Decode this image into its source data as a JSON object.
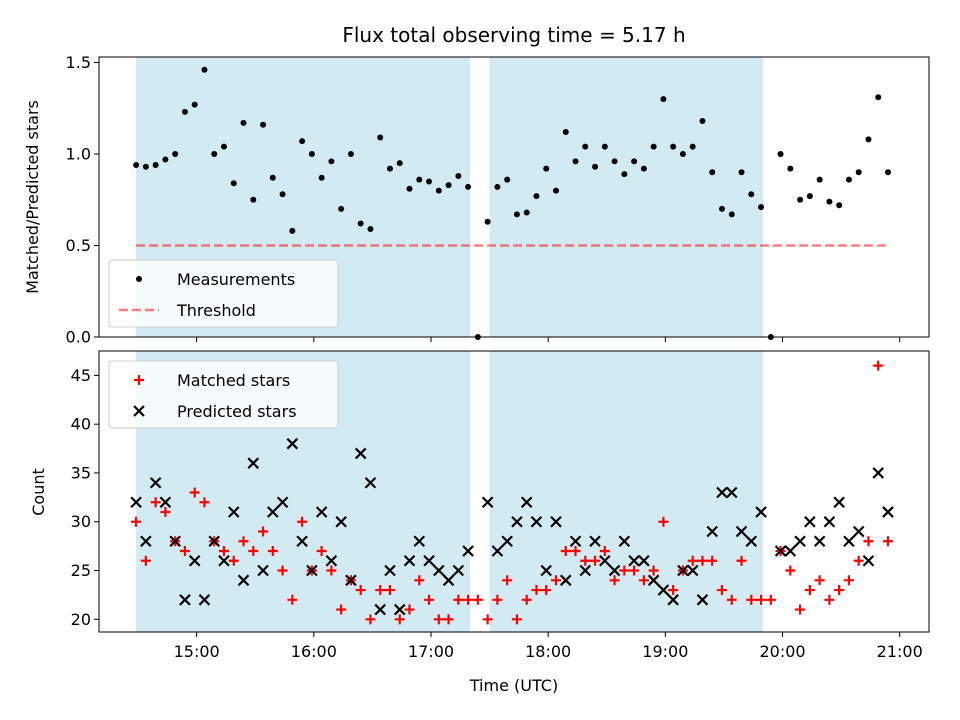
{
  "colors": {
    "shade": "#add8e6",
    "measurement": "#000000",
    "threshold": "#ff0000",
    "matched": "#ff0000",
    "predicted": "#000000"
  },
  "chart_data": [
    {
      "type": "scatter",
      "title": "Flux total observing time = 5.17 h",
      "xlabel": "",
      "ylabel": "Matched/Predicted stars",
      "ylim": [
        0,
        1.53
      ],
      "yticks": [
        0.0,
        0.5,
        1.0,
        1.5
      ],
      "ytick_labels": [
        "0.0",
        "0.5",
        "1.0",
        "1.5"
      ],
      "xlim": [
        "14:10",
        "21:15"
      ],
      "xticks": [
        "15:00",
        "16:00",
        "17:00",
        "18:00",
        "19:00",
        "20:00",
        "21:00"
      ],
      "xtick_labels_shown": false,
      "shaded_spans": [
        [
          "14:29",
          "17:20"
        ],
        [
          "17:30",
          "19:50"
        ]
      ],
      "legend": {
        "placement": "lower-left",
        "entries": [
          "Measurements",
          "Threshold"
        ]
      },
      "threshold": {
        "name": "Threshold",
        "y": 0.5,
        "x_range": [
          "14:29",
          "20:53"
        ],
        "style": "dashed"
      },
      "series": [
        {
          "name": "Measurements",
          "marker": "dot",
          "x": [
            "14:29",
            "14:34",
            "14:39",
            "14:44",
            "14:49",
            "14:54",
            "14:59",
            "15:04",
            "15:09",
            "15:14",
            "15:19",
            "15:24",
            "15:29",
            "15:34",
            "15:39",
            "15:44",
            "15:49",
            "15:54",
            "15:59",
            "16:04",
            "16:09",
            "16:14",
            "16:19",
            "16:24",
            "16:29",
            "16:34",
            "16:39",
            "16:44",
            "16:49",
            "16:54",
            "16:59",
            "17:04",
            "17:09",
            "17:14",
            "17:19",
            "17:24",
            "17:29",
            "17:34",
            "17:39",
            "17:44",
            "17:49",
            "17:54",
            "17:59",
            "18:04",
            "18:09",
            "18:14",
            "18:19",
            "18:24",
            "18:29",
            "18:34",
            "18:39",
            "18:44",
            "18:49",
            "18:54",
            "18:59",
            "19:04",
            "19:09",
            "19:14",
            "19:19",
            "19:24",
            "19:29",
            "19:34",
            "19:39",
            "19:44",
            "19:49",
            "19:54",
            "19:59",
            "20:04",
            "20:09",
            "20:14",
            "20:19",
            "20:24",
            "20:29",
            "20:34",
            "20:39",
            "20:44",
            "20:49",
            "20:54"
          ],
          "y": [
            0.94,
            0.93,
            0.94,
            0.97,
            1.0,
            1.23,
            1.27,
            1.46,
            1.0,
            1.04,
            0.84,
            1.17,
            0.75,
            1.16,
            0.87,
            0.78,
            0.58,
            1.07,
            1.0,
            0.87,
            0.96,
            0.7,
            1.0,
            0.62,
            0.59,
            1.09,
            0.92,
            0.95,
            0.81,
            0.86,
            0.85,
            0.8,
            0.83,
            0.88,
            0.82,
            0.0,
            0.63,
            0.82,
            0.86,
            0.67,
            0.68,
            0.77,
            0.92,
            0.8,
            1.12,
            0.96,
            1.04,
            0.93,
            1.04,
            0.96,
            0.89,
            0.96,
            0.92,
            1.04,
            1.3,
            1.04,
            1.0,
            1.04,
            1.18,
            0.9,
            0.7,
            0.67,
            0.9,
            0.78,
            0.71,
            0.0,
            1.0,
            0.92,
            0.75,
            0.77,
            0.86,
            0.74,
            0.72,
            0.86,
            0.9,
            1.08,
            1.31,
            0.9
          ]
        }
      ]
    },
    {
      "type": "scatter",
      "title": "",
      "xlabel": "Time (UTC)",
      "ylabel": "Count",
      "ylim": [
        18.7,
        47.5
      ],
      "yticks": [
        20,
        25,
        30,
        35,
        40,
        45
      ],
      "ytick_labels": [
        "20",
        "25",
        "30",
        "35",
        "40",
        "45"
      ],
      "xlim": [
        "14:10",
        "21:15"
      ],
      "xticks": [
        "15:00",
        "16:00",
        "17:00",
        "18:00",
        "19:00",
        "20:00",
        "21:00"
      ],
      "xtick_labels": [
        "15:00",
        "16:00",
        "17:00",
        "18:00",
        "19:00",
        "20:00",
        "21:00"
      ],
      "shaded_spans": [
        [
          "14:29",
          "17:20"
        ],
        [
          "17:30",
          "19:50"
        ]
      ],
      "legend": {
        "placement": "upper-left",
        "entries": [
          "Matched stars",
          "Predicted stars"
        ]
      },
      "series": [
        {
          "name": "Matched stars",
          "marker": "plus",
          "x": [
            "14:29",
            "14:34",
            "14:39",
            "14:44",
            "14:49",
            "14:54",
            "14:59",
            "15:04",
            "15:09",
            "15:14",
            "15:19",
            "15:24",
            "15:29",
            "15:34",
            "15:39",
            "15:44",
            "15:49",
            "15:54",
            "15:59",
            "16:04",
            "16:09",
            "16:14",
            "16:19",
            "16:24",
            "16:29",
            "16:34",
            "16:39",
            "16:44",
            "16:49",
            "16:54",
            "16:59",
            "17:04",
            "17:09",
            "17:14",
            "17:19",
            "17:24",
            "17:29",
            "17:34",
            "17:39",
            "17:44",
            "17:49",
            "17:54",
            "17:59",
            "18:04",
            "18:09",
            "18:14",
            "18:19",
            "18:24",
            "18:29",
            "18:34",
            "18:39",
            "18:44",
            "18:49",
            "18:54",
            "18:59",
            "19:04",
            "19:09",
            "19:14",
            "19:19",
            "19:24",
            "19:29",
            "19:34",
            "19:39",
            "19:44",
            "19:49",
            "19:54",
            "19:59",
            "20:04",
            "20:09",
            "20:14",
            "20:19",
            "20:24",
            "20:29",
            "20:34",
            "20:39",
            "20:44",
            "20:49",
            "20:54"
          ],
          "y": [
            30,
            26,
            32,
            31,
            28,
            27,
            33,
            32,
            28,
            27,
            26,
            28,
            27,
            29,
            27,
            25,
            22,
            30,
            25,
            27,
            25,
            21,
            24,
            23,
            20,
            23,
            23,
            20,
            21,
            24,
            22,
            20,
            20,
            22,
            22,
            22,
            20,
            22,
            24,
            20,
            22,
            23,
            23,
            24,
            27,
            27,
            26,
            26,
            27,
            24,
            25,
            25,
            24,
            25,
            30,
            23,
            25,
            26,
            26,
            26,
            23,
            22,
            26,
            22,
            22,
            22,
            27,
            25,
            21,
            23,
            24,
            22,
            23,
            24,
            26,
            28,
            46,
            28
          ]
        },
        {
          "name": "Predicted stars",
          "marker": "x",
          "x": [
            "14:29",
            "14:34",
            "14:39",
            "14:44",
            "14:49",
            "14:54",
            "14:59",
            "15:04",
            "15:09",
            "15:14",
            "15:19",
            "15:24",
            "15:29",
            "15:34",
            "15:39",
            "15:44",
            "15:49",
            "15:54",
            "15:59",
            "16:04",
            "16:09",
            "16:14",
            "16:19",
            "16:24",
            "16:29",
            "16:34",
            "16:39",
            "16:44",
            "16:49",
            "16:54",
            "16:59",
            "17:04",
            "17:09",
            "17:14",
            "17:19",
            "17:29",
            "17:34",
            "17:39",
            "17:44",
            "17:49",
            "17:54",
            "17:59",
            "18:04",
            "18:09",
            "18:14",
            "18:19",
            "18:24",
            "18:29",
            "18:34",
            "18:39",
            "18:44",
            "18:49",
            "18:54",
            "18:59",
            "19:04",
            "19:09",
            "19:14",
            "19:19",
            "19:24",
            "19:29",
            "19:34",
            "19:39",
            "19:44",
            "19:49",
            "19:59",
            "20:04",
            "20:09",
            "20:14",
            "20:19",
            "20:24",
            "20:29",
            "20:34",
            "20:39",
            "20:44",
            "20:49",
            "20:54"
          ],
          "y": [
            32,
            28,
            34,
            32,
            28,
            22,
            26,
            22,
            28,
            26,
            31,
            24,
            36,
            25,
            31,
            32,
            38,
            28,
            25,
            31,
            26,
            30,
            24,
            37,
            34,
            21,
            25,
            21,
            26,
            28,
            26,
            25,
            24,
            25,
            27,
            32,
            27,
            28,
            30,
            32,
            30,
            25,
            30,
            24,
            28,
            25,
            28,
            26,
            25,
            28,
            26,
            26,
            24,
            23,
            22,
            25,
            25,
            22,
            29,
            33,
            33,
            29,
            28,
            31,
            27,
            27,
            28,
            30,
            28,
            30,
            32,
            28,
            29,
            26,
            35,
            31
          ]
        }
      ]
    }
  ]
}
